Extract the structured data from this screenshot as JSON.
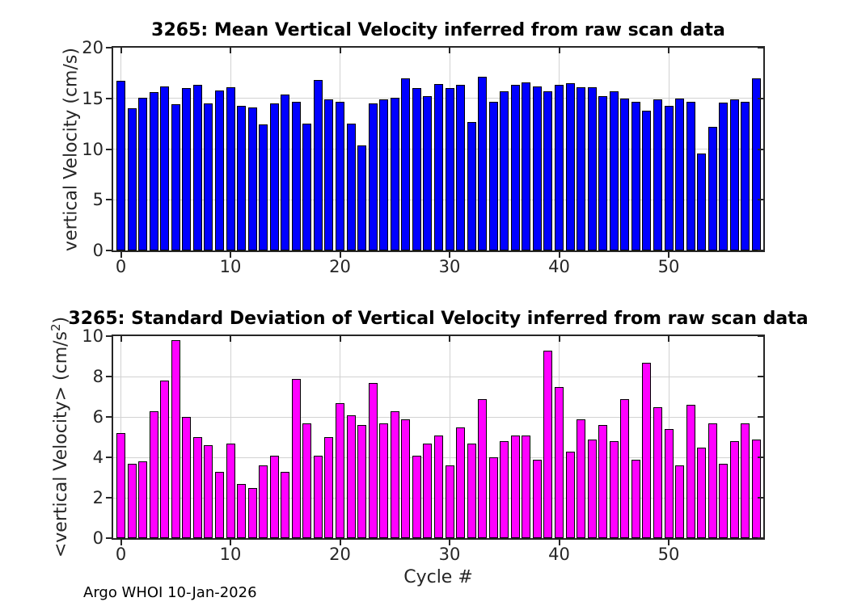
{
  "figure": {
    "footer": "Argo WHOI 10-Jan-2026",
    "background": "#ffffff"
  },
  "chart_data": [
    {
      "id": "mean-vertical-velocity",
      "type": "bar",
      "title": "3265: Mean Vertical Velocity inferred from raw scan data",
      "xlabel": "",
      "ylabel": "vertical Velocity (cm/s)",
      "bar_color": "#0000FF",
      "bar_edge_color": "#000000",
      "grid": true,
      "xlim": [
        -0.7,
        59.3
      ],
      "ylim": [
        0,
        20
      ],
      "yticks": [
        0,
        5,
        10,
        15,
        20
      ],
      "xticks": [
        0,
        10,
        20,
        30,
        40,
        50
      ],
      "x": [
        0,
        1,
        2,
        3,
        4,
        5,
        6,
        7,
        8,
        9,
        10,
        11,
        12,
        13,
        14,
        15,
        16,
        17,
        18,
        19,
        20,
        21,
        22,
        23,
        24,
        25,
        26,
        27,
        28,
        29,
        30,
        31,
        32,
        33,
        34,
        35,
        36,
        37,
        38,
        39,
        40,
        41,
        42,
        43,
        44,
        45,
        46,
        47,
        48,
        49,
        50,
        51,
        52,
        53,
        54,
        55,
        56,
        57,
        58
      ],
      "values": [
        16.7,
        14.0,
        15.1,
        15.6,
        16.2,
        14.4,
        16.0,
        16.3,
        14.5,
        15.8,
        16.1,
        14.3,
        14.1,
        12.4,
        14.5,
        15.4,
        14.7,
        12.5,
        16.8,
        14.9,
        14.7,
        12.5,
        10.4,
        14.5,
        14.9,
        15.1,
        17.0,
        16.0,
        15.2,
        16.4,
        16.0,
        16.3,
        12.7,
        17.1,
        14.7,
        15.7,
        16.3,
        16.6,
        16.2,
        15.7,
        16.3,
        16.5,
        16.1,
        16.1,
        15.2,
        15.7,
        15.0,
        14.7,
        13.8,
        14.9,
        14.3,
        15.0,
        14.7,
        9.6,
        12.2,
        14.6,
        14.9,
        14.7,
        17.0
      ]
    },
    {
      "id": "std-vertical-velocity",
      "type": "bar",
      "title": "3265: Standard Deviation of Vertical Velocity inferred from raw scan data",
      "xlabel": "Cycle #",
      "ylabel": "<vertical Velocity> (cm/s²)",
      "ylabel_parts": {
        "prefix": "<vertical Velocity> (cm/s",
        "sup": "2",
        "suffix": ")"
      },
      "bar_color": "#FF00FF",
      "bar_edge_color": "#000000",
      "grid": true,
      "xlim": [
        -0.7,
        59.3
      ],
      "ylim": [
        0,
        10
      ],
      "yticks": [
        0,
        2,
        4,
        6,
        8,
        10
      ],
      "xticks": [
        0,
        10,
        20,
        30,
        40,
        50
      ],
      "x": [
        0,
        1,
        2,
        3,
        4,
        5,
        6,
        7,
        8,
        9,
        10,
        11,
        12,
        13,
        14,
        15,
        16,
        17,
        18,
        19,
        20,
        21,
        22,
        23,
        24,
        25,
        26,
        27,
        28,
        29,
        30,
        31,
        32,
        33,
        34,
        35,
        36,
        37,
        38,
        39,
        40,
        41,
        42,
        43,
        44,
        45,
        46,
        47,
        48,
        49,
        50,
        51,
        52,
        53,
        54,
        55,
        56,
        57,
        58
      ],
      "values": [
        5.2,
        3.7,
        3.8,
        6.3,
        7.8,
        9.8,
        6.0,
        5.0,
        4.6,
        3.3,
        4.7,
        2.7,
        2.5,
        3.6,
        4.1,
        3.3,
        7.9,
        5.7,
        4.1,
        5.0,
        6.7,
        6.1,
        5.6,
        7.7,
        5.7,
        6.3,
        5.9,
        4.1,
        4.7,
        5.1,
        3.6,
        5.5,
        4.7,
        6.9,
        4.0,
        4.8,
        5.1,
        5.1,
        3.9,
        9.3,
        7.5,
        4.3,
        5.9,
        4.9,
        5.6,
        4.8,
        6.9,
        3.9,
        8.7,
        6.5,
        5.4,
        3.6,
        6.6,
        4.5,
        5.7,
        3.7,
        4.8,
        5.7,
        4.9
      ]
    }
  ]
}
